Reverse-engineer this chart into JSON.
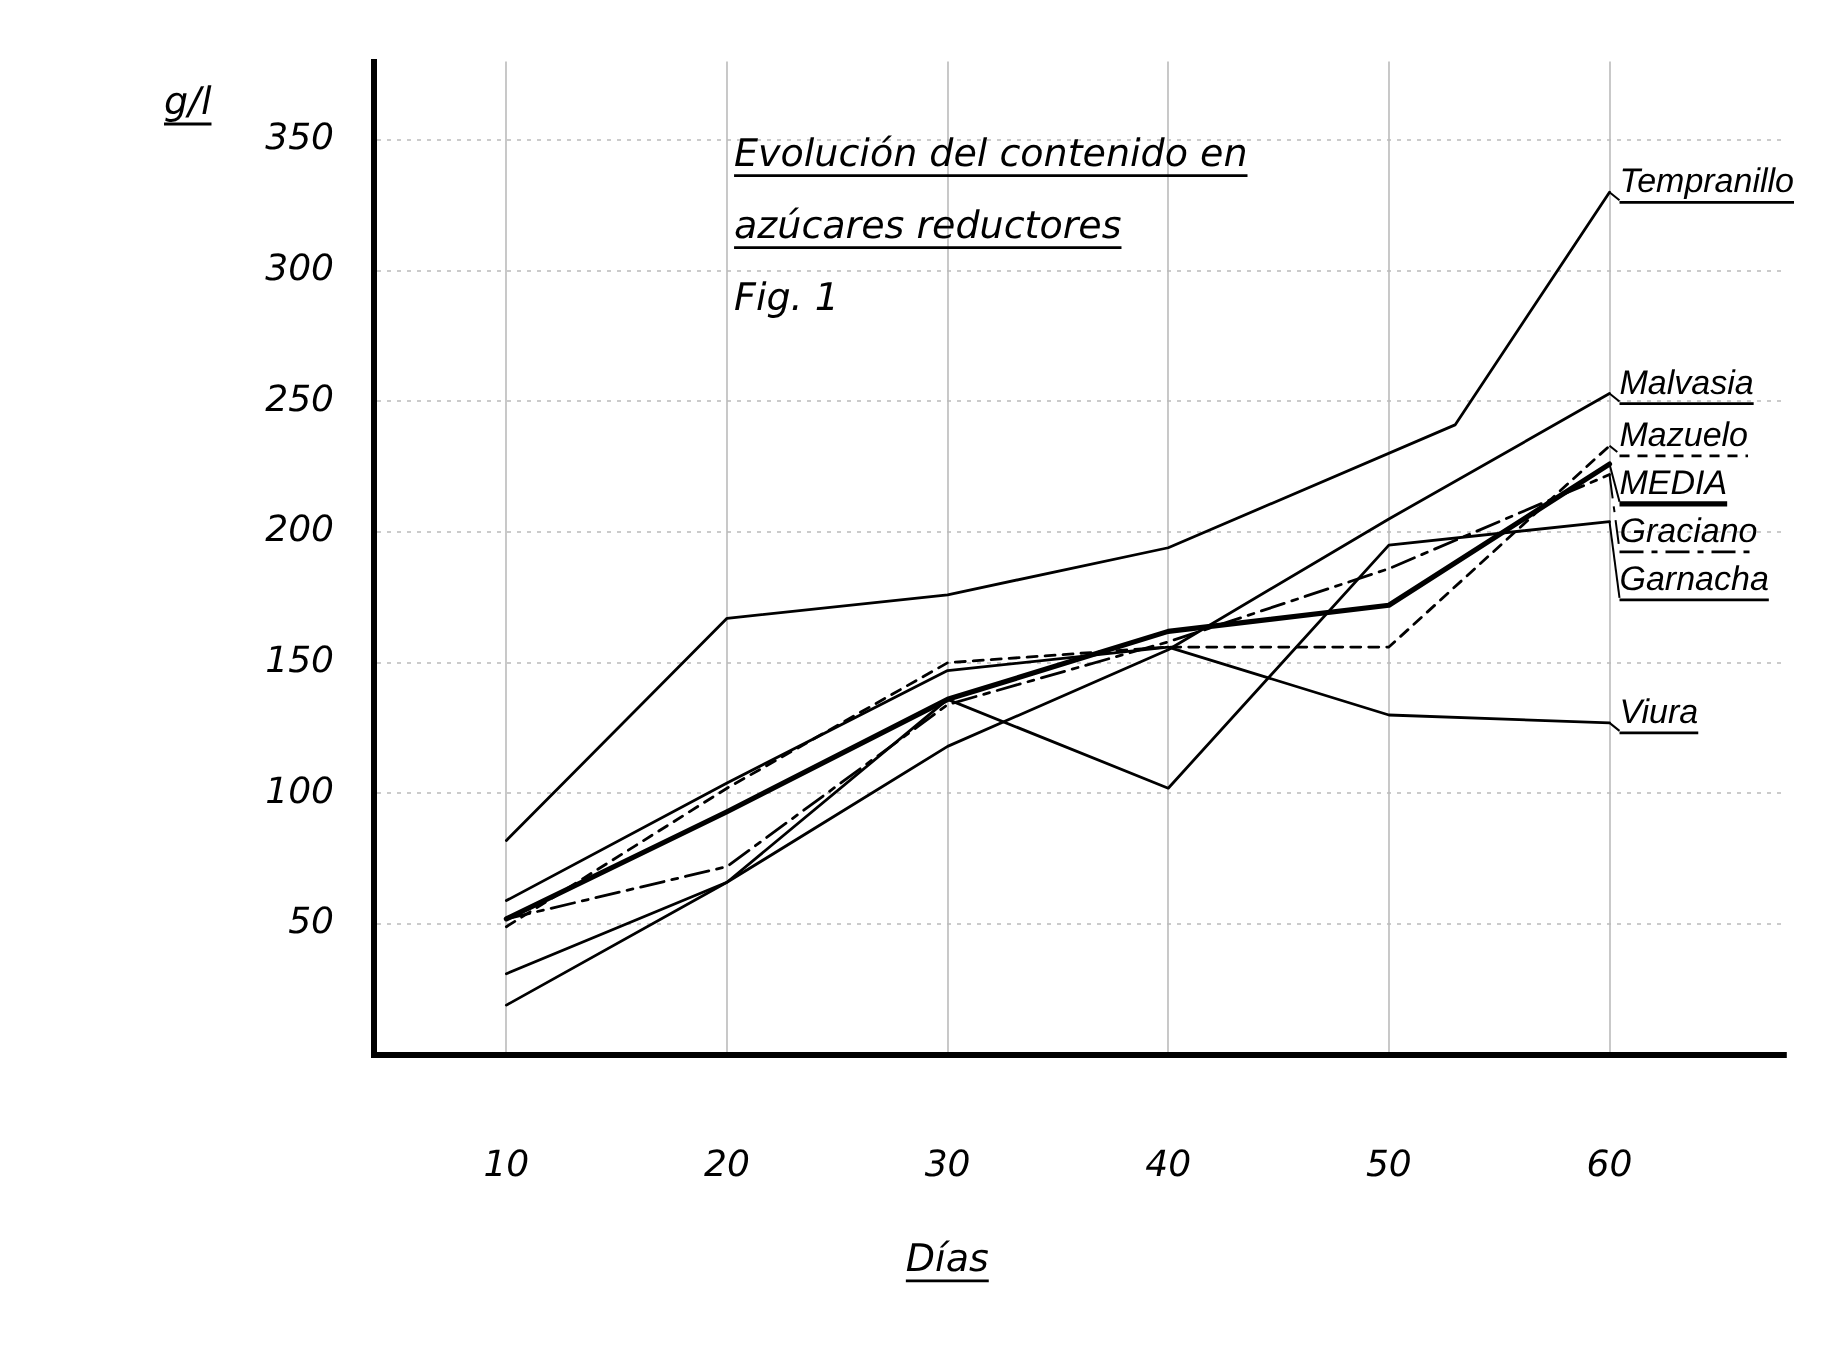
{
  "chart_data": {
    "type": "line",
    "title": "Evolución del contenido en azúcares reductores",
    "xlabel": "Días",
    "ylabel": "g/l",
    "annotations": [
      "Fig. 1"
    ],
    "x": [
      10,
      20,
      30,
      40,
      50,
      60
    ],
    "series": [
      {
        "name": "Tempranillo",
        "color": "#000000",
        "line_style": "solid",
        "x": [
          10,
          20,
          30,
          40,
          53,
          60
        ],
        "values": [
          82,
          167,
          176,
          194,
          241,
          330
        ]
      },
      {
        "name": "MEDIA",
        "color": "#000000",
        "line_style": "solid",
        "values": [
          52,
          93,
          136,
          162,
          172,
          226
        ]
      },
      {
        "name": "Malvasia",
        "color": "#000000",
        "line_style": "solid",
        "values": [
          19,
          66,
          118,
          155,
          205,
          253
        ]
      },
      {
        "name": "Mazuelo",
        "color": "#000000",
        "line_style": "dotted",
        "values": [
          49,
          102,
          150,
          156,
          156,
          233
        ]
      },
      {
        "name": "Graciano",
        "color": "#000000",
        "line_style": "dashed",
        "values": [
          52,
          72,
          134,
          158,
          186,
          222
        ]
      },
      {
        "name": "Garnacha",
        "color": "#000000",
        "line_style": "solid",
        "values": [
          31,
          66,
          136,
          102,
          195,
          204
        ]
      },
      {
        "name": "Viura",
        "color": "#000000",
        "line_style": "solid",
        "values": [
          59,
          104,
          147,
          156,
          130,
          127
        ]
      }
    ],
    "xlim": [
      4,
      68
    ],
    "xticks": [
      10,
      20,
      30,
      40,
      50,
      60
    ],
    "ylim": [
      0,
      380
    ],
    "yticks": [
      50,
      100,
      150,
      200,
      250,
      300,
      350
    ],
    "grid": true,
    "marker": "none",
    "legend": "right"
  }
}
